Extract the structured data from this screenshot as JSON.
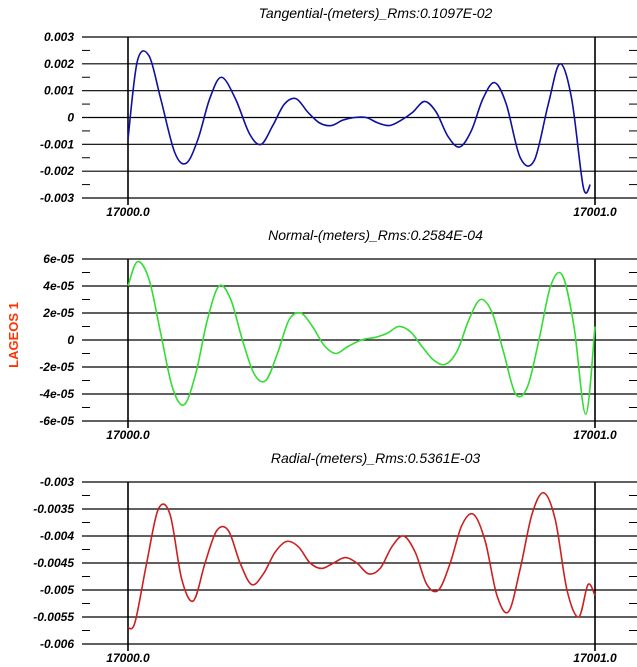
{
  "side_label": "LAGEOS 1",
  "side_label_color": "#ff3300",
  "chart_data": [
    {
      "type": "line",
      "title": "Tangential-(meters)_Rms:0.1097E-02",
      "color": "#1010a0",
      "xlim": [
        17000.0,
        17001.0
      ],
      "x_tick_labels": [
        "17000.0",
        "17001.0"
      ],
      "ylim": [
        -0.003,
        0.003
      ],
      "y_ticks": [
        0.003,
        0.002,
        0.001,
        0,
        -0.001,
        -0.002,
        -0.003
      ],
      "y_tick_labels": [
        "0.003",
        "0.002",
        "0.001",
        "0",
        "-0.001",
        "-0.002",
        "-0.003"
      ],
      "series": [
        {
          "x": [
            17000.0,
            17000.02,
            17000.045,
            17000.07,
            17000.1,
            17000.125,
            17000.15,
            17000.175,
            17000.2,
            17000.23,
            17000.26,
            17000.285,
            17000.31,
            17000.335,
            17000.36,
            17000.385,
            17000.41,
            17000.435,
            17000.46,
            17000.485,
            17000.51,
            17000.535,
            17000.56,
            17000.585,
            17000.61,
            17000.635,
            17000.66,
            17000.685,
            17000.71,
            17000.735,
            17000.76,
            17000.785,
            17000.81,
            17000.84,
            17000.87,
            17000.9,
            17000.925,
            17000.95,
            17000.975,
            17000.99
          ],
          "y": [
            -0.0008,
            0.0021,
            0.0023,
            0.0007,
            -0.0013,
            -0.0017,
            -0.0008,
            0.0007,
            0.0015,
            0.0007,
            -0.0006,
            -0.001,
            -0.0003,
            0.0005,
            0.0007,
            0.0002,
            -0.0002,
            -0.0003,
            -0.0001,
            0.0,
            0.0,
            -0.0002,
            -0.0003,
            -0.0001,
            0.0002,
            0.0006,
            0.0002,
            -0.0007,
            -0.0011,
            -0.0005,
            0.0007,
            0.0013,
            0.0005,
            -0.0015,
            -0.0016,
            0.0005,
            0.002,
            0.0007,
            -0.0026,
            -0.0025
          ]
        }
      ]
    },
    {
      "type": "line",
      "title": "Normal-(meters)_Rms:0.2584E-04",
      "color": "#33dd33",
      "xlim": [
        17000.0,
        17001.0
      ],
      "x_tick_labels": [
        "17000.0",
        "17001.0"
      ],
      "ylim": [
        -6e-05,
        6e-05
      ],
      "y_ticks": [
        6e-05,
        4e-05,
        2e-05,
        0,
        -2e-05,
        -4e-05,
        -6e-05
      ],
      "y_tick_labels": [
        "6e-05",
        "4e-05",
        "2e-05",
        "0",
        "-2e-05",
        "-4e-05",
        "-6e-05"
      ],
      "series": [
        {
          "x": [
            17000.0,
            17000.02,
            17000.045,
            17000.07,
            17000.095,
            17000.12,
            17000.145,
            17000.17,
            17000.195,
            17000.22,
            17000.245,
            17000.27,
            17000.295,
            17000.32,
            17000.345,
            17000.37,
            17000.395,
            17000.42,
            17000.445,
            17000.47,
            17000.5,
            17000.53,
            17000.555,
            17000.58,
            17000.605,
            17000.63,
            17000.655,
            17000.68,
            17000.705,
            17000.73,
            17000.755,
            17000.78,
            17000.805,
            17000.83,
            17000.855,
            17000.88,
            17000.905,
            17000.93,
            17000.955,
            17000.98,
            17001.0
          ],
          "y": [
            4e-05,
            5.8e-05,
            4.5e-05,
            5e-06,
            -3.5e-05,
            -4.8e-05,
            -2.5e-05,
            1.5e-05,
            4e-05,
            3e-05,
            0.0,
            -2.5e-05,
            -3e-05,
            -1e-05,
            1.5e-05,
            2e-05,
            1e-05,
            -4e-06,
            -1e-05,
            -5e-06,
            0.0,
            2e-06,
            5e-06,
            1e-05,
            6e-06,
            -5e-06,
            -1.5e-05,
            -1.8e-05,
            -8e-06,
            1.5e-05,
            3e-05,
            2e-05,
            -1e-05,
            -4e-05,
            -3.5e-05,
            0.0,
            4e-05,
            4.8e-05,
            1e-05,
            -5.5e-05,
            1e-05
          ]
        }
      ]
    },
    {
      "type": "line",
      "title": "Radial-(meters)_Rms:0.5361E-03",
      "color": "#cc2020",
      "xlim": [
        17000.0,
        17001.0
      ],
      "x_tick_labels": [
        "17000.0",
        "17001.0"
      ],
      "ylim": [
        -0.006,
        -0.003
      ],
      "y_ticks": [
        -0.003,
        -0.0035,
        -0.004,
        -0.0045,
        -0.005,
        -0.0055,
        -0.006
      ],
      "y_tick_labels": [
        "-0.003",
        "-0.0035",
        "-0.004",
        "-0.0045",
        "-0.005",
        "-0.0055",
        "-0.006"
      ],
      "series": [
        {
          "x": [
            17000.0,
            17000.015,
            17000.04,
            17000.065,
            17000.09,
            17000.115,
            17000.14,
            17000.165,
            17000.19,
            17000.215,
            17000.24,
            17000.265,
            17000.29,
            17000.315,
            17000.34,
            17000.365,
            17000.39,
            17000.415,
            17000.44,
            17000.465,
            17000.49,
            17000.515,
            17000.54,
            17000.565,
            17000.59,
            17000.615,
            17000.64,
            17000.665,
            17000.69,
            17000.715,
            17000.74,
            17000.765,
            17000.79,
            17000.815,
            17000.84,
            17000.865,
            17000.89,
            17000.915,
            17000.94,
            17000.965,
            17000.985,
            17001.0
          ],
          "y": [
            -0.0057,
            -0.0056,
            -0.0045,
            -0.0035,
            -0.0036,
            -0.0048,
            -0.0052,
            -0.0045,
            -0.0039,
            -0.0039,
            -0.0045,
            -0.0049,
            -0.0047,
            -0.0043,
            -0.0041,
            -0.0042,
            -0.0045,
            -0.0046,
            -0.0045,
            -0.0044,
            -0.0045,
            -0.0047,
            -0.0046,
            -0.0042,
            -0.004,
            -0.0043,
            -0.0049,
            -0.005,
            -0.0045,
            -0.0038,
            -0.0036,
            -0.0041,
            -0.0051,
            -0.0054,
            -0.0046,
            -0.0036,
            -0.0032,
            -0.0037,
            -0.005,
            -0.0055,
            -0.0049,
            -0.0051
          ]
        }
      ]
    }
  ]
}
